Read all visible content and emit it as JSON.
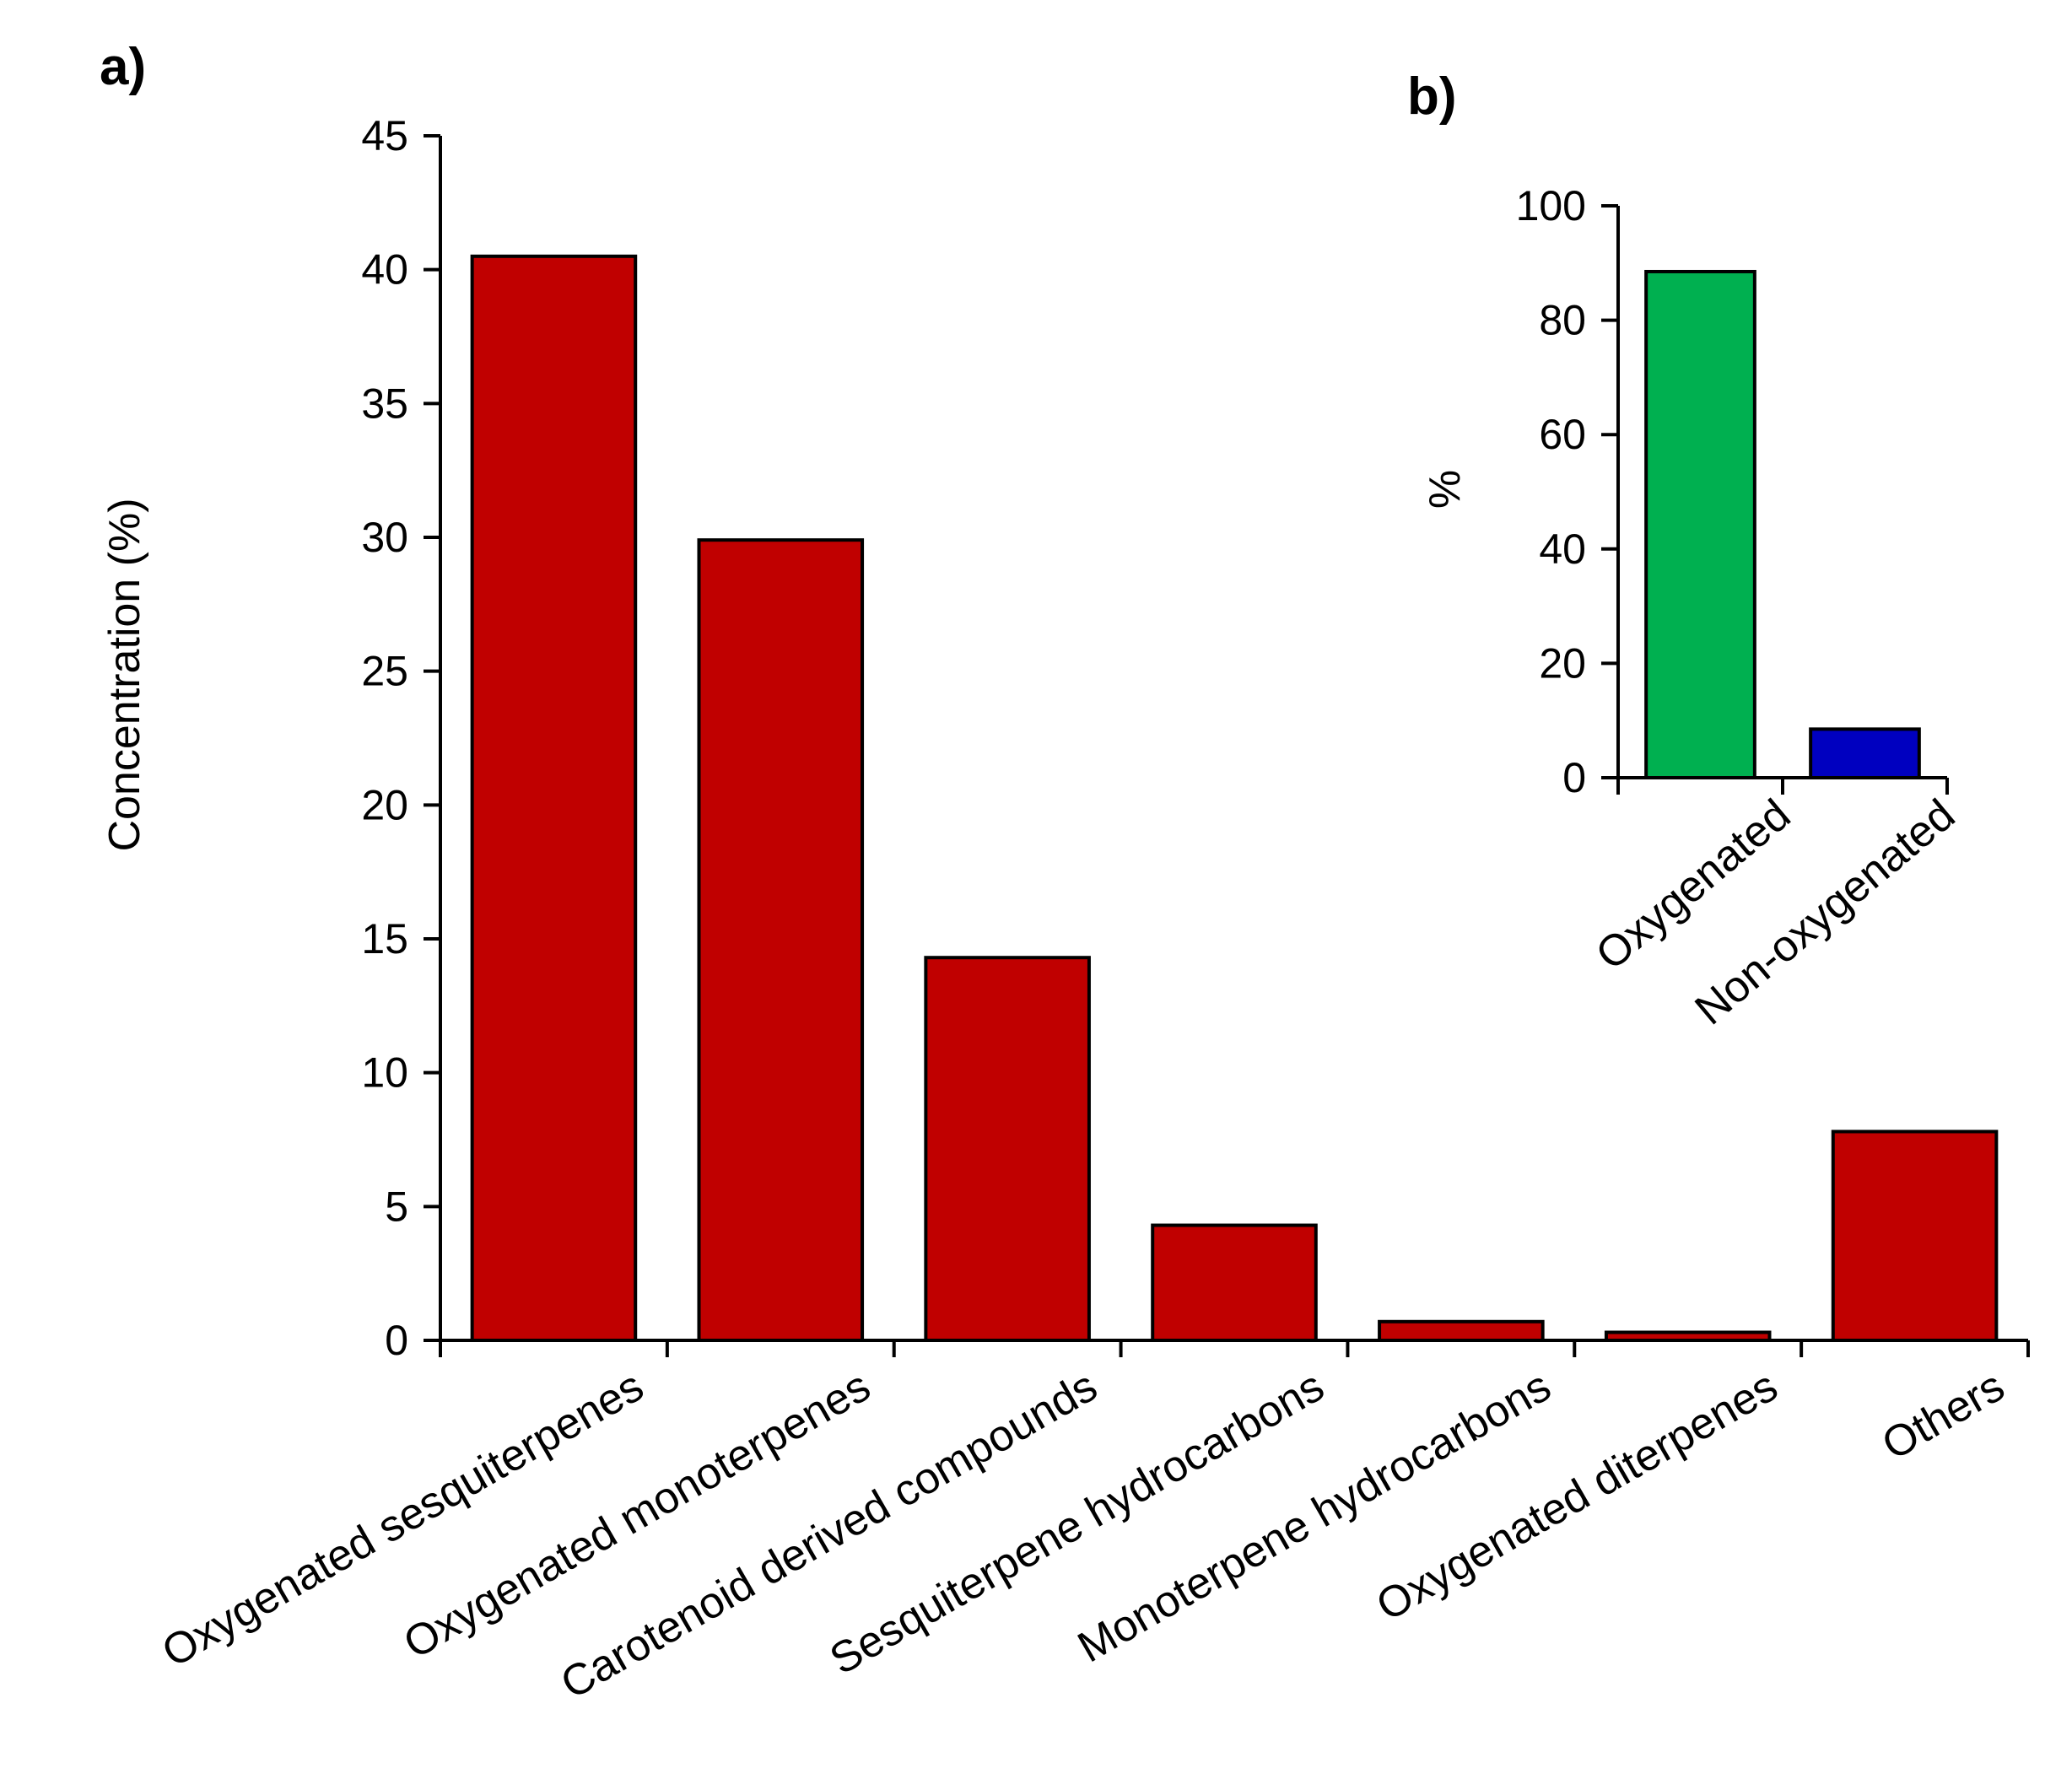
{
  "chart_data": [
    {
      "panel": "a)",
      "type": "bar",
      "categories": [
        "Oxygenated sesquiterpenes",
        "Oxygenated monoterpenes",
        "Carotenoid derived compounds",
        "Sesquiterpene hydrocarbons",
        "Monoterpene hydrocarbons",
        "Oxygenated diterpenes",
        "Others"
      ],
      "values": [
        40.5,
        29.9,
        14.3,
        4.3,
        0.7,
        0.3,
        7.8
      ],
      "colors": [
        "#c00000",
        "#c00000",
        "#c00000",
        "#c00000",
        "#c00000",
        "#c00000",
        "#c00000"
      ],
      "xlabel": "",
      "ylabel": "Concentration (%)",
      "ylim": [
        0,
        45
      ],
      "yticks": [
        0,
        5,
        10,
        15,
        20,
        25,
        30,
        35,
        40,
        45
      ],
      "grid": false,
      "legend": "none"
    },
    {
      "panel": "b)",
      "type": "bar",
      "categories": [
        "Oxygenated",
        "Non-oxygenated"
      ],
      "values": [
        88.5,
        8.5
      ],
      "colors": [
        "#00b050",
        "#0000c0"
      ],
      "xlabel": "",
      "ylabel": "%",
      "ylim": [
        0,
        100
      ],
      "yticks": [
        0,
        20,
        40,
        60,
        80,
        100
      ],
      "grid": false,
      "legend": "none"
    }
  ]
}
